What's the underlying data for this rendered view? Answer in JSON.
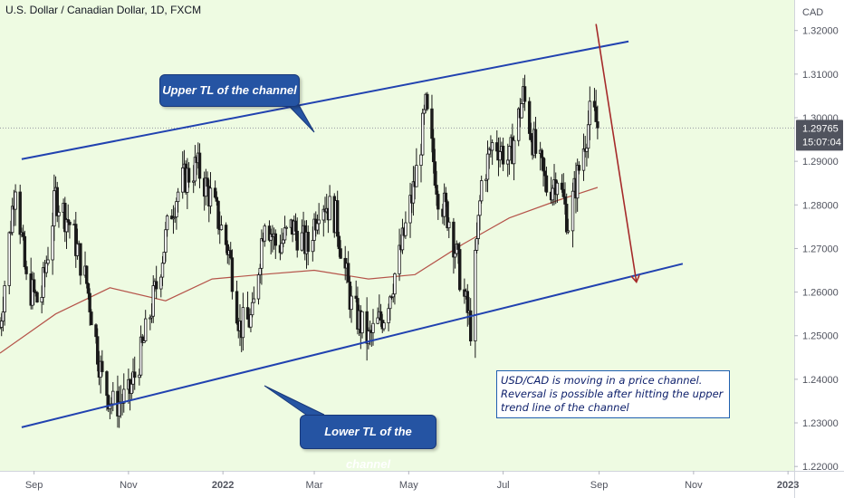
{
  "header": {
    "symbol_title": "U.S. Dollar / Canadian Dollar, 1D, FXCM"
  },
  "price_axis": {
    "unit": "CAD",
    "ticks": [
      "1.32000",
      "1.31000",
      "1.30000",
      "1.29000",
      "1.28000",
      "1.27000",
      "1.26000",
      "1.25000",
      "1.24000",
      "1.23000",
      "1.22000"
    ],
    "current_price": "1.29765",
    "countdown": "15:07:04"
  },
  "time_axis": {
    "ticks": [
      "Sep",
      "Nov",
      "2022",
      "Mar",
      "May",
      "Jul",
      "Sep",
      "Nov",
      "2023"
    ]
  },
  "annotations": {
    "upper_callout": "Upper TL of the channel",
    "lower_callout": "Lower TL of the channel",
    "note_lines": [
      "USD/CAD is moving in a price channel.",
      "Reversal is possible after hitting the upper",
      "trend line of the channel"
    ]
  },
  "colors": {
    "background": "#eefbe2",
    "candle": "#1a1a1a",
    "trendline": "#2142b0",
    "moving_average": "#b5544a",
    "forecast_arrow": "#a52a2a",
    "price_label": "#50535e"
  },
  "chart_data": {
    "type": "candlestick",
    "interval": "1D",
    "y_range": [
      1.219,
      1.327
    ],
    "x_range": [
      "2021-08-10",
      "2023-01-05"
    ],
    "x_tick_dates": [
      "2021-09-01",
      "2021-11-01",
      "2022-01-01",
      "2022-03-01",
      "2022-05-01",
      "2022-07-01",
      "2022-09-01",
      "2022-11-01",
      "2023-01-01"
    ],
    "y_ticks": [
      1.32,
      1.31,
      1.3,
      1.29,
      1.28,
      1.27,
      1.26,
      1.25,
      1.24,
      1.23,
      1.22
    ],
    "current_price": 1.29765,
    "price_path": [
      [
        "2021-08-10",
        1.252
      ],
      [
        "2021-08-20",
        1.286
      ],
      [
        "2021-08-27",
        1.262
      ],
      [
        "2021-09-05",
        1.257
      ],
      [
        "2021-09-15",
        1.282
      ],
      [
        "2021-09-25",
        1.275
      ],
      [
        "2021-10-05",
        1.262
      ],
      [
        "2021-10-15",
        1.24
      ],
      [
        "2021-10-22",
        1.234
      ],
      [
        "2021-11-01",
        1.236
      ],
      [
        "2021-11-10",
        1.247
      ],
      [
        "2021-11-20",
        1.263
      ],
      [
        "2021-11-28",
        1.278
      ],
      [
        "2021-12-05",
        1.285
      ],
      [
        "2021-12-15",
        1.289
      ],
      [
        "2021-12-25",
        1.281
      ],
      [
        "2022-01-05",
        1.269
      ],
      [
        "2022-01-12",
        1.252
      ],
      [
        "2022-01-20",
        1.254
      ],
      [
        "2022-01-28",
        1.278
      ],
      [
        "2022-02-05",
        1.27
      ],
      [
        "2022-02-15",
        1.275
      ],
      [
        "2022-02-25",
        1.27
      ],
      [
        "2022-03-05",
        1.282
      ],
      [
        "2022-03-15",
        1.277
      ],
      [
        "2022-03-25",
        1.257
      ],
      [
        "2022-04-05",
        1.249
      ],
      [
        "2022-04-15",
        1.255
      ],
      [
        "2022-04-25",
        1.268
      ],
      [
        "2022-05-05",
        1.285
      ],
      [
        "2022-05-12",
        1.302
      ],
      [
        "2022-05-20",
        1.283
      ],
      [
        "2022-05-28",
        1.276
      ],
      [
        "2022-06-05",
        1.26
      ],
      [
        "2022-06-10",
        1.252
      ],
      [
        "2022-06-17",
        1.285
      ],
      [
        "2022-06-25",
        1.295
      ],
      [
        "2022-07-05",
        1.29
      ],
      [
        "2022-07-14",
        1.305
      ],
      [
        "2022-07-22",
        1.292
      ],
      [
        "2022-07-30",
        1.283
      ],
      [
        "2022-08-05",
        1.287
      ],
      [
        "2022-08-12",
        1.276
      ],
      [
        "2022-08-20",
        1.29
      ],
      [
        "2022-08-27",
        1.302
      ],
      [
        "2022-08-31",
        1.298
      ]
    ],
    "moving_average": [
      [
        "2021-08-10",
        1.246
      ],
      [
        "2021-09-15",
        1.255
      ],
      [
        "2021-10-20",
        1.261
      ],
      [
        "2021-11-25",
        1.258
      ],
      [
        "2021-12-25",
        1.263
      ],
      [
        "2022-01-25",
        1.264
      ],
      [
        "2022-03-01",
        1.265
      ],
      [
        "2022-04-05",
        1.263
      ],
      [
        "2022-05-05",
        1.264
      ],
      [
        "2022-06-05",
        1.271
      ],
      [
        "2022-07-05",
        1.277
      ],
      [
        "2022-08-05",
        1.281
      ],
      [
        "2022-08-31",
        1.284
      ]
    ],
    "trendlines": [
      {
        "points": [
          [
            "2021-08-24",
            1.2905
          ],
          [
            "2022-09-20",
            1.3175
          ]
        ]
      },
      {
        "points": [
          [
            "2021-08-24",
            1.229
          ],
          [
            "2022-10-25",
            1.2665
          ]
        ]
      }
    ],
    "forecast_arrow": {
      "from": [
        "2022-08-30",
        1.3215
      ],
      "to": [
        "2022-09-25",
        1.2625
      ]
    }
  }
}
